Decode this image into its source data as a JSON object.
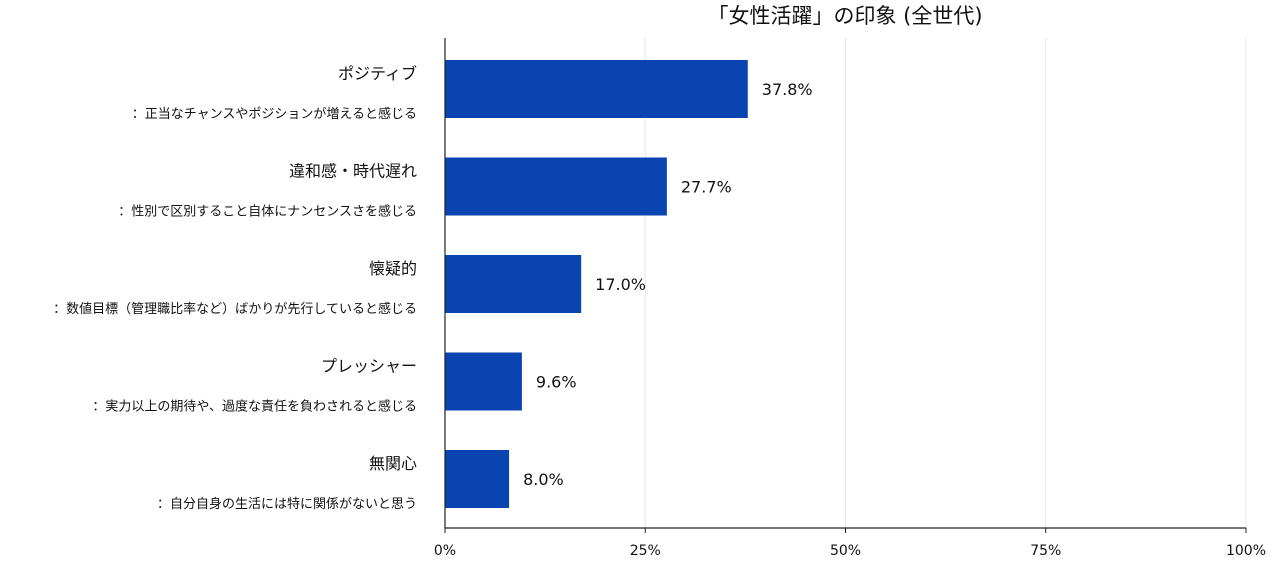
{
  "chart_data": {
    "type": "bar",
    "orientation": "horizontal",
    "title": "「女性活躍」の印象 (全世代)",
    "categories": [
      {
        "name": "ポジティブ",
        "description": "：正当なチャンスやポジションが増えると感じる"
      },
      {
        "name": "違和感・時代遅れ",
        "description": "：性別で区別すること自体にナンセンスさを感じる"
      },
      {
        "name": "懐疑的",
        "description": "：数値目標（管理職比率など）ばかりが先行していると感じる"
      },
      {
        "name": "プレッシャー",
        "description": "：実力以上の期待や、過度な責任を負わされると感じる"
      },
      {
        "name": "無関心",
        "description": "：自分自身の生活には特に関係がないと思う"
      }
    ],
    "values": [
      37.8,
      27.7,
      17.0,
      9.6,
      8.0
    ],
    "value_labels": [
      "37.8%",
      "27.7%",
      "17.0%",
      "9.6%",
      "8.0%"
    ],
    "xlim": [
      0,
      100
    ],
    "xticks": [
      0,
      25,
      50,
      75,
      100
    ],
    "xtick_labels": [
      "0%",
      "25%",
      "50%",
      "75%",
      "100%"
    ],
    "bar_color": "#0a44b0",
    "grid": true
  }
}
